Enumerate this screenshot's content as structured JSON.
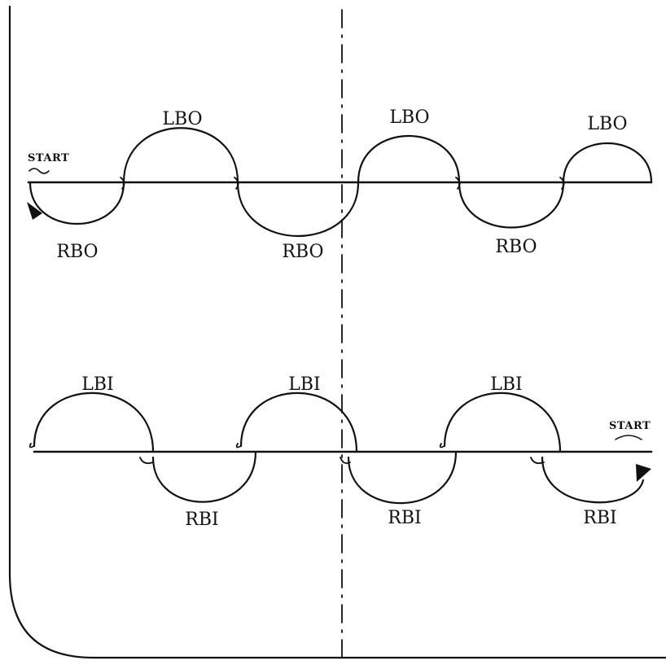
{
  "diagram": {
    "top_row": {
      "start_label": "START",
      "lobes_above": [
        "LBO",
        "LBO",
        "LBO"
      ],
      "lobes_below": [
        "RBO",
        "RBO",
        "RBO"
      ]
    },
    "bottom_row": {
      "start_label": "START",
      "lobes_above": [
        "LBI",
        "LBI",
        "LBI"
      ],
      "lobes_below": [
        "RBI",
        "RBI",
        "RBI"
      ]
    }
  }
}
